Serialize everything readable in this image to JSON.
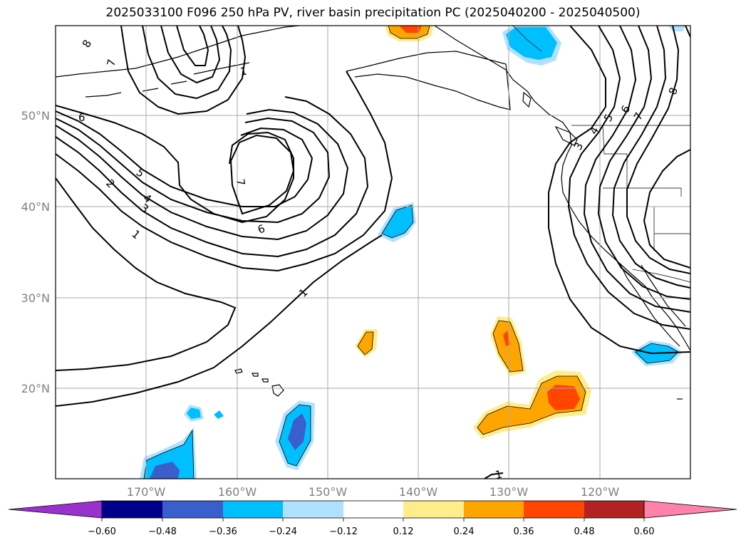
{
  "title": "2025033100 F096 250 hPa PV, river basin precipitation PC (2025040200 - 2025040500)",
  "lat_labels": [
    "50°N",
    "40°N",
    "30°N",
    "20°N"
  ],
  "lon_labels": [
    "170°W",
    "160°W",
    "150°W",
    "140°W",
    "130°W",
    "120°W"
  ],
  "pv_contour_labels": [
    "8",
    "7",
    "6",
    "5",
    "4",
    "3",
    "2",
    "1",
    "7",
    "6",
    "1",
    "1",
    "8",
    "7",
    "6",
    "5",
    "4",
    "3",
    "1"
  ],
  "colorbar": {
    "tick_labels": [
      "−0.60",
      "−0.48",
      "−0.36",
      "−0.24",
      "−0.12",
      "0.12",
      "0.24",
      "0.36",
      "0.48",
      "0.60"
    ],
    "colors": [
      "#9932cc",
      "#00008b",
      "#3a5fcd",
      "#00bfff",
      "#b0e2ff",
      "#ffffff",
      "#ffec8b",
      "#ffa500",
      "#ff4500",
      "#b22222",
      "#ff82ab"
    ]
  },
  "palette": {
    "neg_strong": "#3a5fcd",
    "neg": "#00bfff",
    "neg_weak": "#b0e2ff",
    "pos_weak": "#ffec8b",
    "pos": "#ffa500",
    "pos_strong": "#ff4500"
  }
}
